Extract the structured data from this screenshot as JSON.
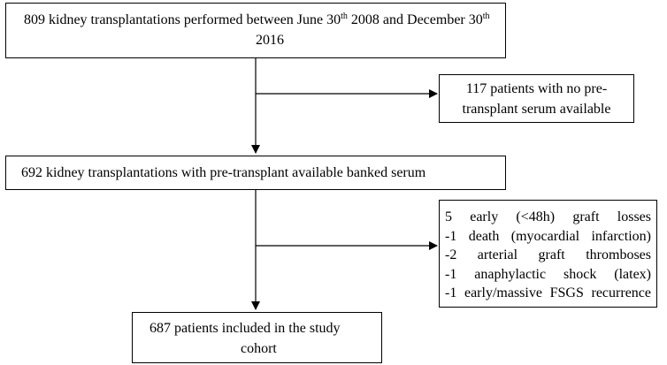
{
  "box1": {
    "line1_pre": "809 kidney transplantations performed between June 30",
    "sup1": "th",
    "line1_mid": " 2008 and December 30",
    "sup2": "th",
    "line2": "2016"
  },
  "box2": {
    "line1": "117 patients with no pre-",
    "line2": "transplant serum available"
  },
  "box3": {
    "text": "692 kidney transplantations with pre-transplant available banked serum"
  },
  "box4": {
    "lines": [
      "5 early (<48h) graft losses",
      "-1 death (myocardial infarction)",
      "-2 arterial graft thromboses",
      "-1 anaphylactic shock (latex)",
      "-1 early/massive FSGS recurrence"
    ]
  },
  "box5": {
    "line1": "687 patients included in the study",
    "line2": "cohort"
  }
}
